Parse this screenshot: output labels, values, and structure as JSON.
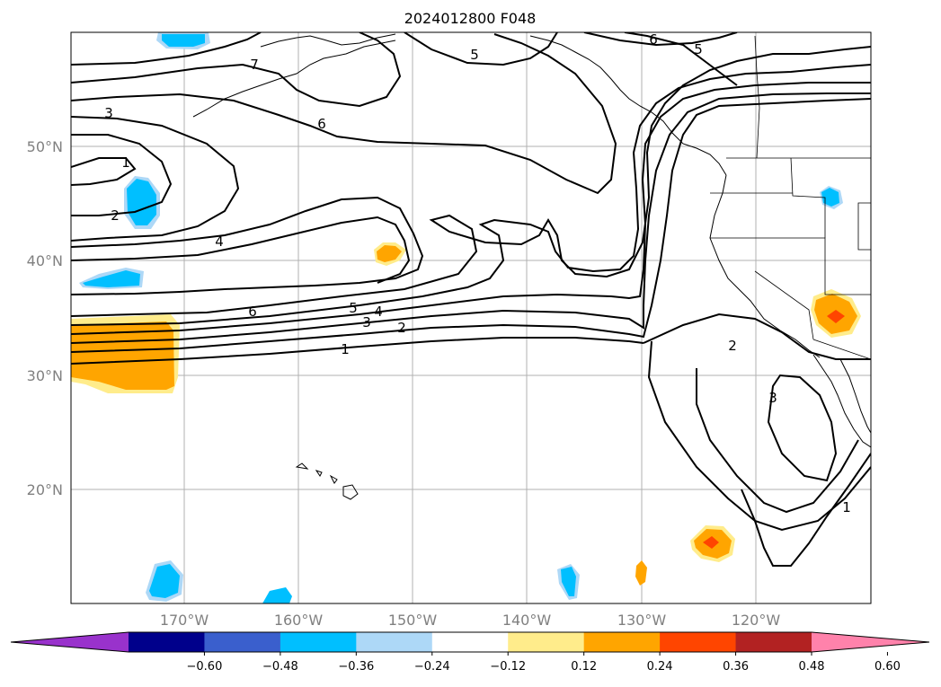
{
  "title": "2024012800 F048",
  "map": {
    "lat_labels": [
      "50°N",
      "40°N",
      "30°N",
      "20°N"
    ],
    "lon_labels": [
      "170°W",
      "160°W",
      "150°W",
      "140°W",
      "130°W",
      "120°W"
    ],
    "grid": true,
    "contour_labels": [
      "7",
      "5",
      "6",
      "5",
      "3",
      "6",
      "1",
      "2",
      "4",
      "6",
      "5",
      "4",
      "3",
      "2",
      "1",
      "2",
      "3",
      "1"
    ]
  },
  "colorbar": {
    "colors": [
      "#9932cc",
      "#00008b",
      "#3a5fcd",
      "#00bfff",
      "#add8f7",
      "#ffffff",
      "#ffec8b",
      "#ffa500",
      "#ff4500",
      "#b22222",
      "#ff82ab"
    ],
    "ticks": [
      "−0.60",
      "−0.48",
      "−0.36",
      "−0.24",
      "−0.12",
      "0.12",
      "0.24",
      "0.36",
      "0.48",
      "0.60"
    ],
    "extend": "both"
  }
}
